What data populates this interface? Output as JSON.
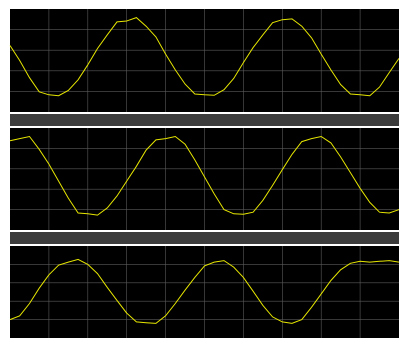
{
  "window": {
    "background": "#ffffff",
    "divider_color": "#3c3c3c",
    "plot_background": "#000000",
    "grid_color": "#5a5a5a",
    "trace_color": "#e6e600"
  },
  "chart_data": [
    {
      "type": "line",
      "title": "",
      "xlabel": "",
      "ylabel": "",
      "grid": true,
      "xlim": [
        0,
        10
      ],
      "ylim": [
        -1.2,
        1.2
      ],
      "series": [
        {
          "color": "#e6e600",
          "x": [
            0,
            0.25,
            0.5,
            0.75,
            1.0,
            1.25,
            1.5,
            1.75,
            2.0,
            2.25,
            2.5,
            2.75,
            3.0,
            3.25,
            3.5,
            3.75,
            4.0,
            4.25,
            4.5,
            4.75,
            5.0,
            5.25,
            5.5,
            5.75,
            6.0,
            6.25,
            6.5,
            6.75,
            7.0,
            7.25,
            7.5,
            7.75,
            8.0,
            8.25,
            8.5,
            8.75,
            9.0,
            9.25,
            9.5,
            9.75,
            10.0
          ],
          "y": [
            0.35,
            0.0,
            -0.4,
            -0.73,
            -0.8,
            -0.82,
            -0.7,
            -0.45,
            -0.1,
            0.28,
            0.6,
            0.9,
            0.92,
            1.0,
            0.8,
            0.55,
            0.15,
            -0.22,
            -0.55,
            -0.78,
            -0.8,
            -0.81,
            -0.68,
            -0.42,
            -0.05,
            0.3,
            0.6,
            0.88,
            0.95,
            0.97,
            0.8,
            0.53,
            0.15,
            -0.22,
            -0.56,
            -0.78,
            -0.8,
            -0.82,
            -0.62,
            -0.28,
            0.05
          ]
        }
      ]
    },
    {
      "type": "line",
      "title": "",
      "xlabel": "",
      "ylabel": "",
      "grid": true,
      "xlim": [
        0,
        10
      ],
      "ylim": [
        -1.2,
        1.2
      ],
      "series": [
        {
          "color": "#e6e600",
          "x": [
            0,
            0.25,
            0.5,
            0.75,
            1.0,
            1.25,
            1.5,
            1.75,
            2.0,
            2.25,
            2.5,
            2.75,
            3.0,
            3.25,
            3.5,
            3.75,
            4.0,
            4.25,
            4.5,
            4.75,
            5.0,
            5.25,
            5.5,
            5.75,
            6.0,
            6.25,
            6.5,
            6.75,
            7.0,
            7.25,
            7.5,
            7.75,
            8.0,
            8.25,
            8.5,
            8.75,
            9.0,
            9.25,
            9.5,
            9.75,
            10.0
          ],
          "y": [
            0.9,
            0.95,
            1.0,
            0.7,
            0.35,
            -0.05,
            -0.45,
            -0.8,
            -0.82,
            -0.85,
            -0.68,
            -0.4,
            -0.05,
            0.3,
            0.68,
            0.92,
            0.95,
            1.0,
            0.82,
            0.45,
            0.05,
            -0.35,
            -0.72,
            -0.82,
            -0.83,
            -0.78,
            -0.5,
            -0.15,
            0.22,
            0.58,
            0.88,
            0.95,
            1.0,
            0.85,
            0.52,
            0.15,
            -0.22,
            -0.55,
            -0.78,
            -0.8,
            -0.72
          ]
        }
      ]
    },
    {
      "type": "line",
      "title": "",
      "xlabel": "",
      "ylabel": "",
      "grid": true,
      "xlim": [
        0,
        10
      ],
      "ylim": [
        -1.2,
        1.2
      ],
      "series": [
        {
          "color": "#e6e600",
          "x": [
            0,
            0.25,
            0.5,
            0.75,
            1.0,
            1.25,
            1.5,
            1.75,
            2.0,
            2.25,
            2.5,
            2.75,
            3.0,
            3.25,
            3.5,
            3.75,
            4.0,
            4.25,
            4.5,
            4.75,
            5.0,
            5.25,
            5.5,
            5.75,
            6.0,
            6.25,
            6.5,
            6.75,
            7.0,
            7.25,
            7.5,
            7.75,
            8.0,
            8.25,
            8.5,
            8.75,
            9.0,
            9.25,
            9.5,
            9.75,
            10.0
          ],
          "y": [
            -0.72,
            -0.62,
            -0.3,
            0.1,
            0.45,
            0.7,
            0.78,
            0.85,
            0.72,
            0.48,
            0.12,
            -0.22,
            -0.55,
            -0.78,
            -0.8,
            -0.82,
            -0.62,
            -0.3,
            0.05,
            0.38,
            0.68,
            0.78,
            0.82,
            0.65,
            0.38,
            0.02,
            -0.35,
            -0.65,
            -0.78,
            -0.82,
            -0.72,
            -0.4,
            -0.05,
            0.3,
            0.58,
            0.75,
            0.8,
            0.78,
            0.8,
            0.82,
            0.78
          ]
        }
      ]
    }
  ]
}
